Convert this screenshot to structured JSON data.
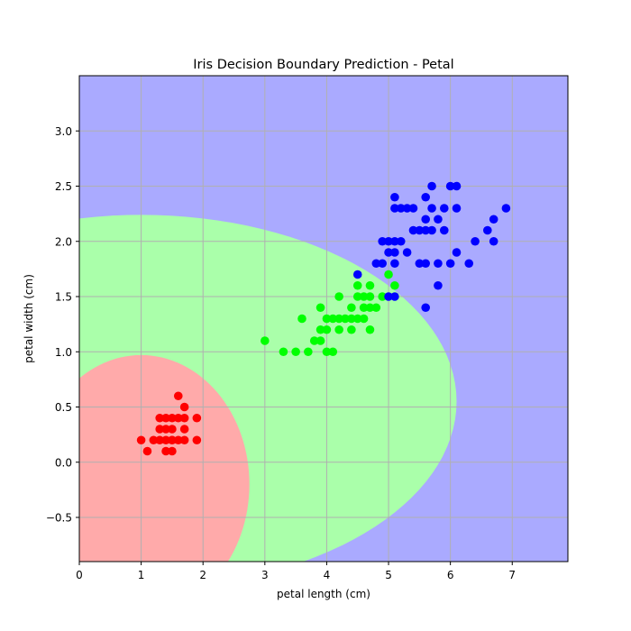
{
  "chart_data": {
    "type": "scatter",
    "title": "Iris Decision Boundary Prediction - Petal",
    "xlabel": "petal length (cm)",
    "ylabel": "petal width (cm)",
    "xlim": [
      0,
      7.9
    ],
    "ylim": [
      -0.9,
      3.5
    ],
    "xticks": [
      0,
      1,
      2,
      3,
      4,
      5,
      6,
      7
    ],
    "xtick_labels": [
      "0",
      "1",
      "2",
      "3",
      "4",
      "5",
      "6",
      "7"
    ],
    "yticks": [
      -0.5,
      0.0,
      0.5,
      1.0,
      1.5,
      2.0,
      2.5,
      3.0
    ],
    "ytick_labels": [
      "−0.5",
      "0.0",
      "0.5",
      "1.0",
      "1.5",
      "2.0",
      "2.5",
      "3.0"
    ],
    "grid": true,
    "legend": "none",
    "colors": {
      "class0_region": "#ffaaaa",
      "class1_region": "#aaffaa",
      "class2_region": "#aaaaff",
      "class0_points": "#ff0000",
      "class1_points": "#00ff00",
      "class2_points": "#0000ff",
      "grid": "#b0b0b0"
    },
    "regions": {
      "class0": {
        "center": [
          1.0,
          -0.2
        ],
        "radius_x": 1.75,
        "radius_y": 1.17
      },
      "class1": {
        "center": [
          1.0,
          0.55
        ],
        "radius_x": 5.1,
        "radius_y": 1.69
      }
    },
    "series": [
      {
        "class": 0,
        "points": [
          [
            1.0,
            0.2
          ],
          [
            1.1,
            0.1
          ],
          [
            1.2,
            0.2
          ],
          [
            1.3,
            0.2
          ],
          [
            1.3,
            0.3
          ],
          [
            1.3,
            0.4
          ],
          [
            1.4,
            0.2
          ],
          [
            1.4,
            0.3
          ],
          [
            1.4,
            0.1
          ],
          [
            1.5,
            0.2
          ],
          [
            1.5,
            0.1
          ],
          [
            1.5,
            0.4
          ],
          [
            1.5,
            0.3
          ],
          [
            1.6,
            0.2
          ],
          [
            1.6,
            0.4
          ],
          [
            1.6,
            0.6
          ],
          [
            1.7,
            0.2
          ],
          [
            1.7,
            0.3
          ],
          [
            1.7,
            0.4
          ],
          [
            1.7,
            0.5
          ],
          [
            1.9,
            0.2
          ],
          [
            1.9,
            0.4
          ],
          [
            1.4,
            0.4
          ],
          [
            1.5,
            0.2
          ]
        ]
      },
      {
        "class": 1,
        "points": [
          [
            3.0,
            1.1
          ],
          [
            3.3,
            1.0
          ],
          [
            3.5,
            1.0
          ],
          [
            3.6,
            1.3
          ],
          [
            3.7,
            1.0
          ],
          [
            3.8,
            1.1
          ],
          [
            3.9,
            1.1
          ],
          [
            3.9,
            1.2
          ],
          [
            3.9,
            1.4
          ],
          [
            4.0,
            1.0
          ],
          [
            4.0,
            1.2
          ],
          [
            4.0,
            1.3
          ],
          [
            4.1,
            1.0
          ],
          [
            4.1,
            1.3
          ],
          [
            4.2,
            1.2
          ],
          [
            4.2,
            1.3
          ],
          [
            4.2,
            1.5
          ],
          [
            4.3,
            1.3
          ],
          [
            4.4,
            1.2
          ],
          [
            4.4,
            1.3
          ],
          [
            4.4,
            1.4
          ],
          [
            4.5,
            1.3
          ],
          [
            4.5,
            1.5
          ],
          [
            4.5,
            1.6
          ],
          [
            4.6,
            1.3
          ],
          [
            4.6,
            1.4
          ],
          [
            4.6,
            1.5
          ],
          [
            4.7,
            1.2
          ],
          [
            4.7,
            1.4
          ],
          [
            4.7,
            1.5
          ],
          [
            4.7,
            1.6
          ],
          [
            4.8,
            1.4
          ],
          [
            4.9,
            1.5
          ],
          [
            5.0,
            1.7
          ],
          [
            5.1,
            1.6
          ]
        ]
      },
      {
        "class": 2,
        "points": [
          [
            4.5,
            1.7
          ],
          [
            4.8,
            1.8
          ],
          [
            4.9,
            1.8
          ],
          [
            4.9,
            2.0
          ],
          [
            5.0,
            1.5
          ],
          [
            5.0,
            1.9
          ],
          [
            5.0,
            2.0
          ],
          [
            5.1,
            1.5
          ],
          [
            5.1,
            1.8
          ],
          [
            5.1,
            1.9
          ],
          [
            5.1,
            2.0
          ],
          [
            5.1,
            2.3
          ],
          [
            5.1,
            2.4
          ],
          [
            5.2,
            2.0
          ],
          [
            5.2,
            2.3
          ],
          [
            5.3,
            1.9
          ],
          [
            5.3,
            2.3
          ],
          [
            5.4,
            2.1
          ],
          [
            5.4,
            2.3
          ],
          [
            5.5,
            1.8
          ],
          [
            5.5,
            2.1
          ],
          [
            5.6,
            1.4
          ],
          [
            5.6,
            1.8
          ],
          [
            5.6,
            2.1
          ],
          [
            5.6,
            2.2
          ],
          [
            5.6,
            2.4
          ],
          [
            5.7,
            2.1
          ],
          [
            5.7,
            2.3
          ],
          [
            5.7,
            2.5
          ],
          [
            5.8,
            1.6
          ],
          [
            5.8,
            1.8
          ],
          [
            5.8,
            2.2
          ],
          [
            5.9,
            2.1
          ],
          [
            5.9,
            2.3
          ],
          [
            6.0,
            1.8
          ],
          [
            6.0,
            2.5
          ],
          [
            6.1,
            1.9
          ],
          [
            6.1,
            2.3
          ],
          [
            6.1,
            2.5
          ],
          [
            6.3,
            1.8
          ],
          [
            6.4,
            2.0
          ],
          [
            6.6,
            2.1
          ],
          [
            6.7,
            2.0
          ],
          [
            6.7,
            2.2
          ],
          [
            6.9,
            2.3
          ]
        ]
      }
    ]
  }
}
